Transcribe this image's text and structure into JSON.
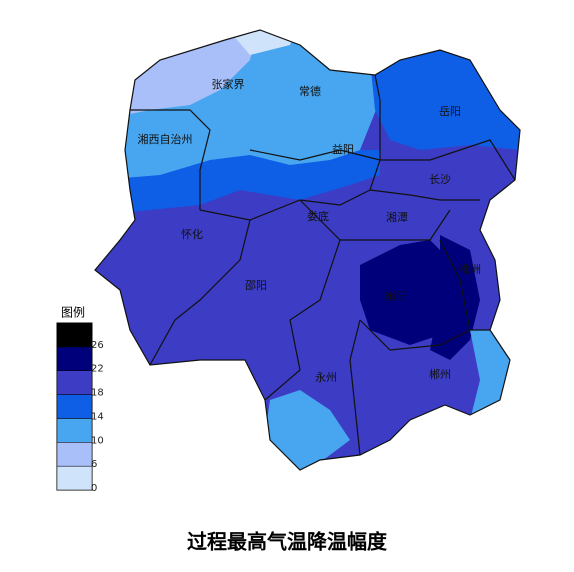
{
  "title": "过程最高气温降温幅度",
  "legend": {
    "title": "图例",
    "ticks": [
      0,
      6,
      10,
      14,
      18,
      22,
      26
    ],
    "colors": [
      "#cfe3fb",
      "#a9bff9",
      "#47a6ef",
      "#0f5ee6",
      "#3c3cc4",
      "#00007a",
      "#000000"
    ]
  },
  "cities": [
    "张家界",
    "常德",
    "岳阳",
    "湘西自治州",
    "益阳",
    "长沙",
    "怀化",
    "娄底",
    "湘潭",
    "株洲",
    "邵阳",
    "衡阳",
    "永州",
    "郴州"
  ]
}
